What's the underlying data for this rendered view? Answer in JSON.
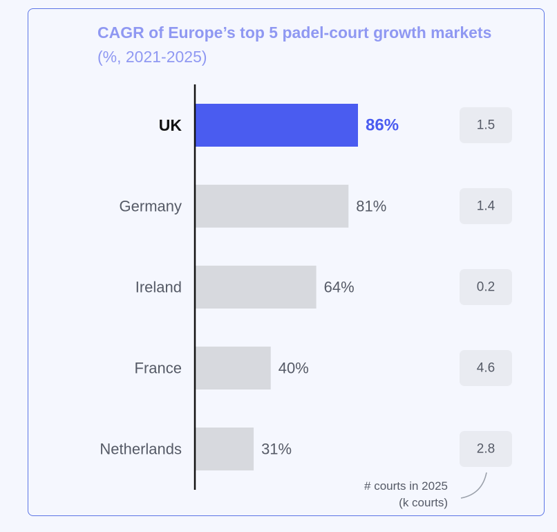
{
  "chart_data": {
    "type": "bar",
    "orientation": "horizontal",
    "title": "CAGR of Europe’s top 5 padel-court growth markets",
    "subtitle": "(%, 2021-2025)",
    "categories": [
      "UK",
      "Germany",
      "Ireland",
      "France",
      "Netherlands"
    ],
    "values": [
      86,
      81,
      64,
      40,
      31
    ],
    "value_labels": [
      "86%",
      "81%",
      "64%",
      "40%",
      "31%"
    ],
    "highlight": "UK",
    "courts_2025": [
      "1.5",
      "1.4",
      "0.2",
      "4.6",
      "2.8"
    ],
    "courts_note": [
      "# courts in 2025",
      "(k courts)"
    ],
    "grid": false,
    "colors": {
      "highlight": "#4a5cf0",
      "bar": "#d7d9de",
      "title": "#8f98f2",
      "axis": "#111111",
      "label": "#555a66",
      "box": "#e9ebf1"
    }
  }
}
